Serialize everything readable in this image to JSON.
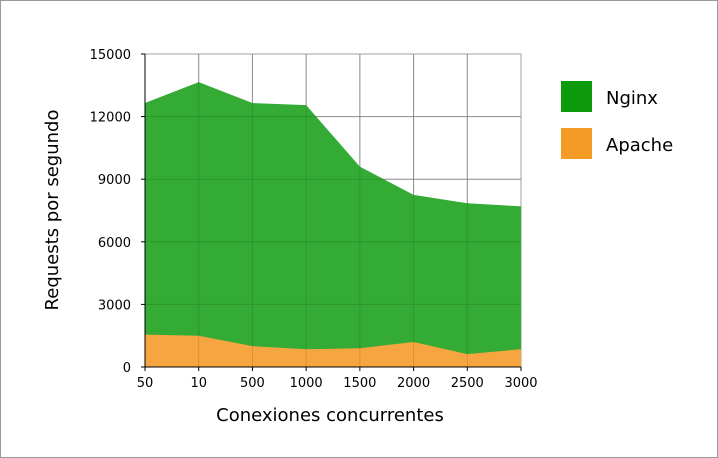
{
  "chart_data": {
    "type": "area",
    "stacked": false,
    "categories": [
      "50",
      "10",
      "500",
      "1000",
      "1500",
      "2000",
      "2500",
      "3000"
    ],
    "series": [
      {
        "name": "Nginx",
        "color": "#34ab34",
        "legend_color": "#0c990c",
        "values": [
          12650,
          13650,
          12650,
          12550,
          9600,
          8250,
          7850,
          7700
        ]
      },
      {
        "name": "Apache",
        "color": "#f7a540",
        "legend_color": "#f49b26",
        "values": [
          1550,
          1500,
          1000,
          850,
          900,
          1200,
          620,
          850
        ]
      }
    ],
    "title": "",
    "xlabel": "Conexiones concurrentes",
    "ylabel": "Requests por segundo",
    "ylim": [
      0,
      15000
    ],
    "yticks": [
      "0",
      "3000",
      "6000",
      "9000",
      "12000",
      "15000"
    ],
    "grid": true,
    "legend_position": "right"
  }
}
